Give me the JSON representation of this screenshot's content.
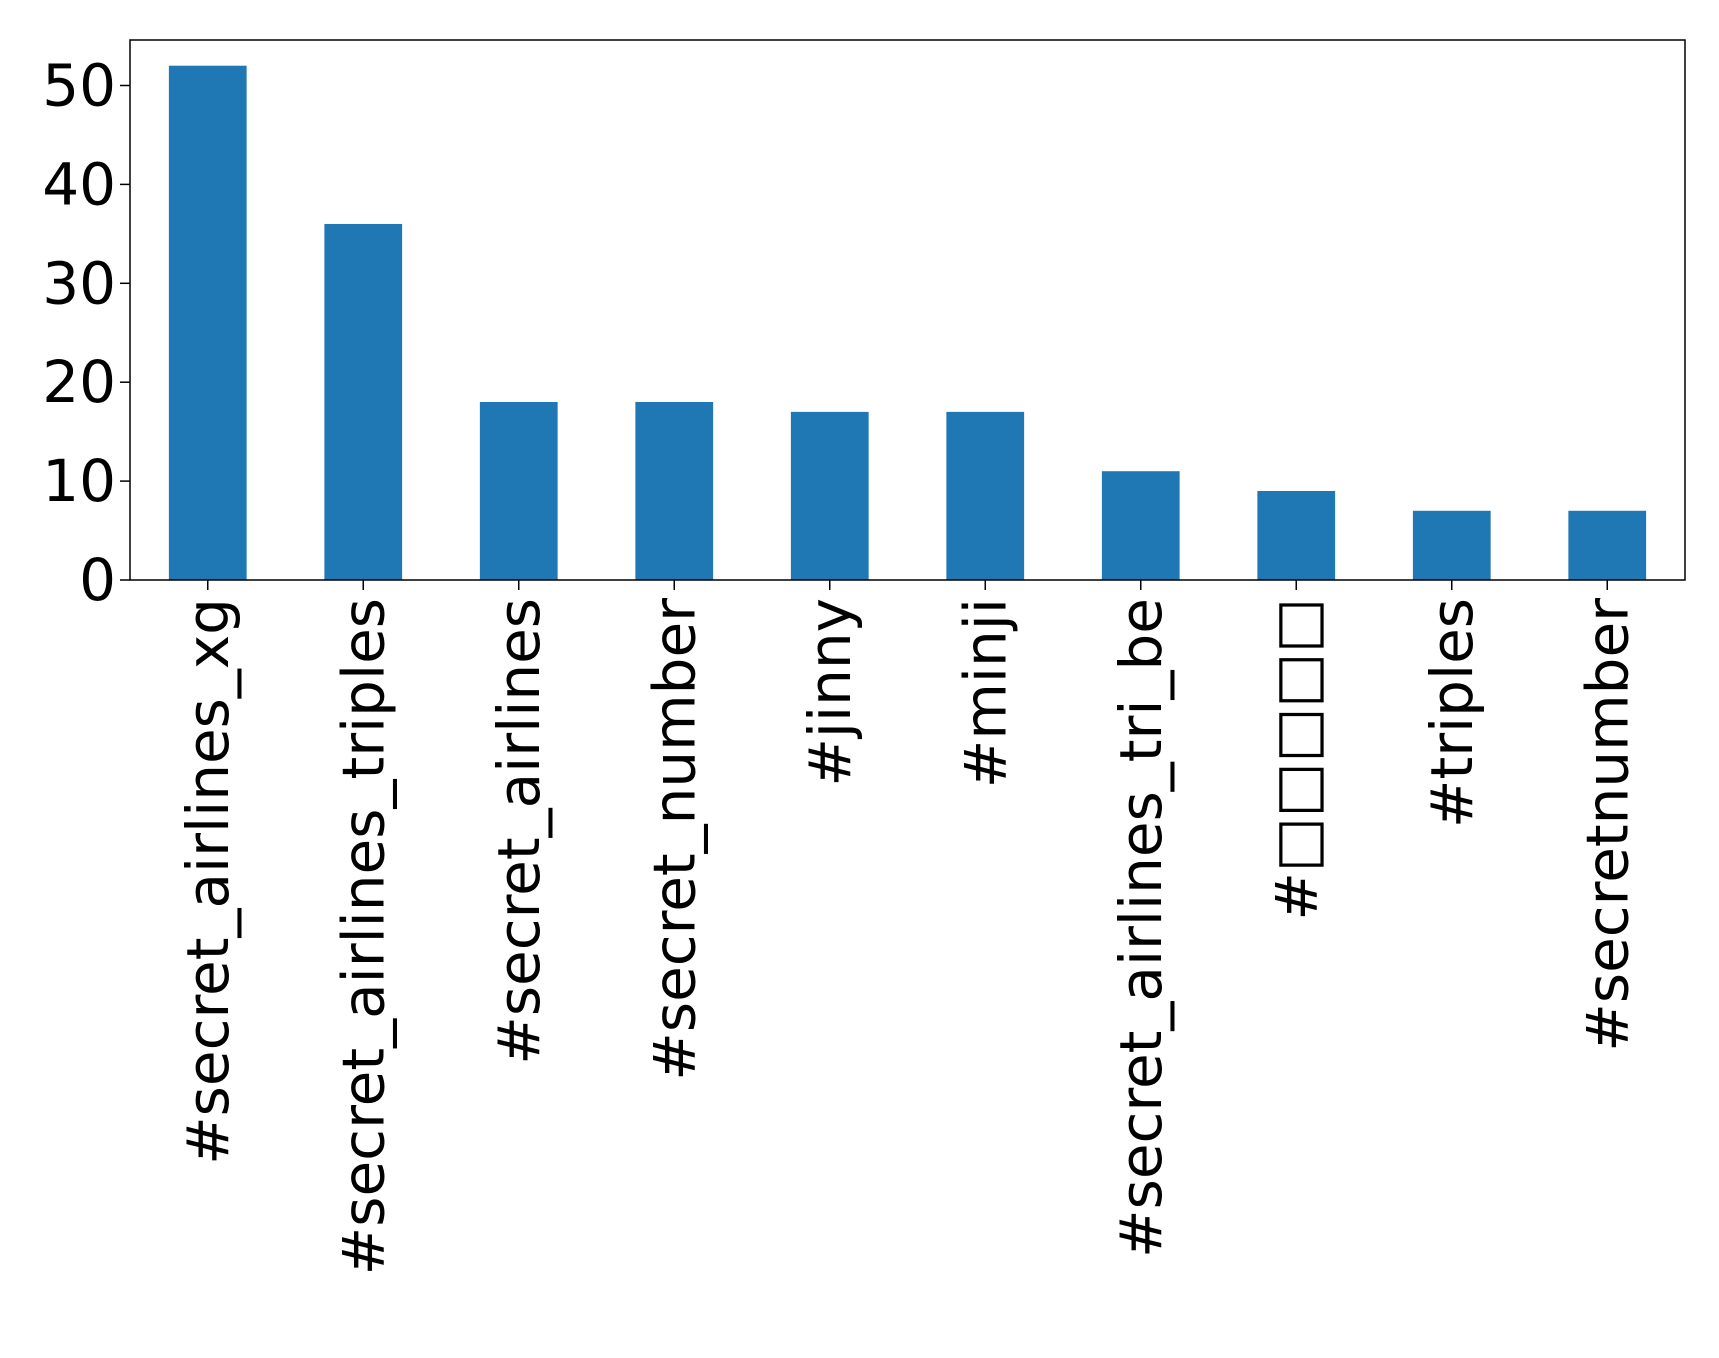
{
  "chart_data": {
    "type": "bar",
    "title": "",
    "xlabel": "",
    "ylabel": "",
    "categories": [
      "#secret_airlines_xg",
      "#secret_airlines_triples",
      "#secret_airlines",
      "#secret_number",
      "#jinny",
      "#minji",
      "#secret_airlines_tri_be",
      "#□□□□□",
      "#triples",
      "#secretnumber"
    ],
    "values": [
      52,
      36,
      18,
      18,
      17,
      17,
      11,
      9,
      7,
      7
    ],
    "yticks": [
      0,
      10,
      20,
      30,
      40,
      50
    ],
    "ylim": [
      0,
      54.6
    ],
    "grid": false,
    "legend": "none",
    "bar_color": "#1f77b4"
  }
}
